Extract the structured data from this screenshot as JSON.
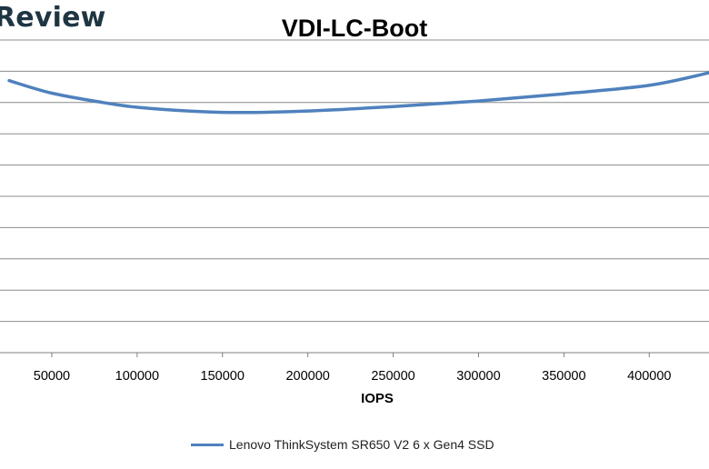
{
  "watermark": "Review",
  "chart_data": {
    "type": "line",
    "title": "VDI-LC-Boot",
    "xlabel": "IOPS",
    "ylabel": "",
    "xlim": [
      25000,
      435000
    ],
    "ylim": [
      0,
      10
    ],
    "x_ticks": [
      50000,
      100000,
      150000,
      200000,
      250000,
      300000,
      350000,
      400000
    ],
    "x_tick_labels": [
      "50000",
      "100000",
      "150000",
      "200000",
      "250000",
      "300000",
      "350000",
      "400000"
    ],
    "y_gridlines": [
      1,
      2,
      3,
      4,
      5,
      6,
      7,
      8,
      9,
      10
    ],
    "grid": true,
    "legend_position": "bottom",
    "series": [
      {
        "name": "Lenovo ThinkSystem SR650 V2 6 x Gen4 SSD",
        "color": "#4f81bd",
        "x": [
          25000,
          50000,
          80000,
          100000,
          130000,
          160000,
          200000,
          250000,
          300000,
          350000,
          400000,
          435000
        ],
        "y": [
          8.7,
          8.3,
          8.0,
          7.85,
          7.73,
          7.68,
          7.73,
          7.87,
          8.05,
          8.28,
          8.55,
          8.95
        ]
      }
    ]
  }
}
